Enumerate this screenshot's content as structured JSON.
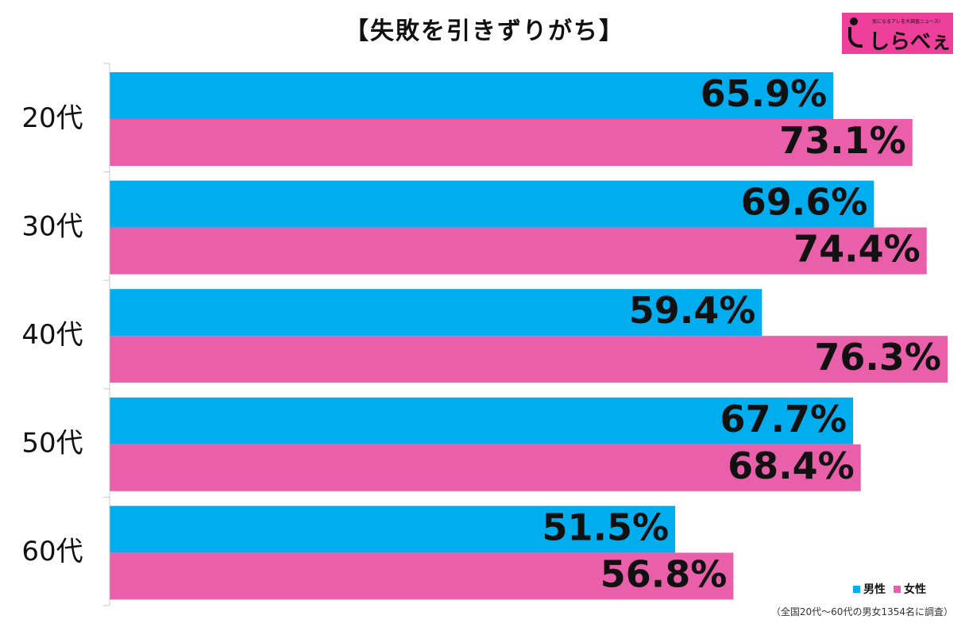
{
  "chart_data": {
    "type": "bar",
    "orientation": "horizontal",
    "title": "【失敗を引きずりがち】",
    "categories": [
      "20代",
      "30代",
      "40代",
      "50代",
      "60代"
    ],
    "series": [
      {
        "name": "男性",
        "values": [
          65.9,
          69.6,
          59.4,
          67.7,
          51.5
        ],
        "labels": [
          "65.9%",
          "69.6%",
          "59.4%",
          "67.7%",
          "51.5%"
        ]
      },
      {
        "name": "女性",
        "values": [
          73.1,
          74.4,
          76.3,
          68.4,
          56.8
        ],
        "labels": [
          "73.1%",
          "74.4%",
          "76.3%",
          "68.4%",
          "56.8%"
        ]
      }
    ],
    "xlim": [
      0,
      76.3
    ],
    "grid": false,
    "legend_position": "bottom-right",
    "footnote": "（全国20代～60代の男女1354名に調査）"
  },
  "colors": {
    "male": "#00aeef",
    "female": "#e95fa9"
  },
  "logo": {
    "text": "しらべぇ",
    "tagline": "気になるアレを大調査ニュース!",
    "icon": "i-letter-icon"
  }
}
